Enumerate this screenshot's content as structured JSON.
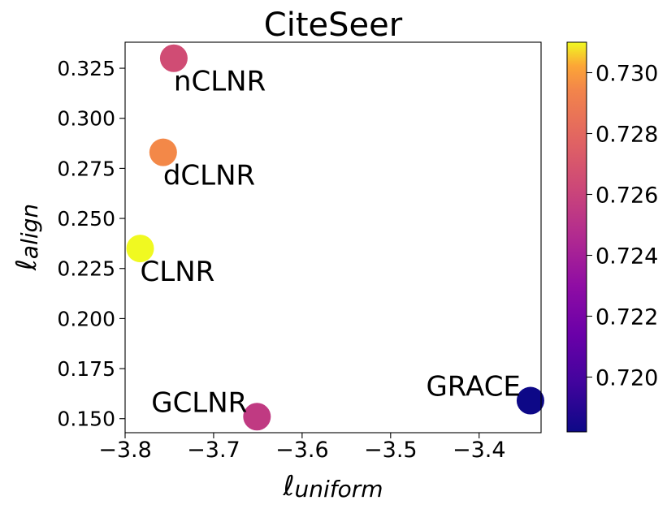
{
  "chart_data": {
    "type": "scatter",
    "title": "CiteSeer",
    "xlabel": {
      "symbol": "ℓ",
      "sub": "uniform"
    },
    "ylabel": {
      "symbol": "ℓ",
      "sub": "align"
    },
    "xlim": [
      -3.8,
      -3.33
    ],
    "ylim": [
      0.143,
      0.338
    ],
    "xticks": [
      -3.8,
      -3.7,
      -3.6,
      -3.5,
      -3.4
    ],
    "xtick_labels": [
      "−3.8",
      "−3.7",
      "−3.6",
      "−3.5",
      "−3.4"
    ],
    "yticks": [
      0.15,
      0.175,
      0.2,
      0.225,
      0.25,
      0.275,
      0.3,
      0.325
    ],
    "ytick_labels": [
      "0.150",
      "0.175",
      "0.200",
      "0.225",
      "0.250",
      "0.275",
      "0.300",
      "0.325"
    ],
    "points": [
      {
        "label": "nCLNR",
        "x": -3.745,
        "y": 0.33,
        "c": 0.7265,
        "label_pos": "below-right"
      },
      {
        "label": "dCLNR",
        "x": -3.757,
        "y": 0.283,
        "c": 0.7295,
        "label_pos": "below-right"
      },
      {
        "label": "CLNR",
        "x": -3.783,
        "y": 0.235,
        "c": 0.731,
        "label_pos": "below-right"
      },
      {
        "label": "GCLNR",
        "x": -3.651,
        "y": 0.151,
        "c": 0.7255,
        "label_pos": "upper-left"
      },
      {
        "label": "GRACE",
        "x": -3.342,
        "y": 0.159,
        "c": 0.7182,
        "label_pos": "upper-left"
      }
    ],
    "colorbar": {
      "cmap": "plasma",
      "range": [
        0.7182,
        0.731
      ],
      "ticks": [
        0.72,
        0.722,
        0.724,
        0.726,
        0.728,
        0.73
      ],
      "tick_labels": [
        "0.720",
        "0.722",
        "0.724",
        "0.726",
        "0.728",
        "0.730"
      ]
    }
  }
}
